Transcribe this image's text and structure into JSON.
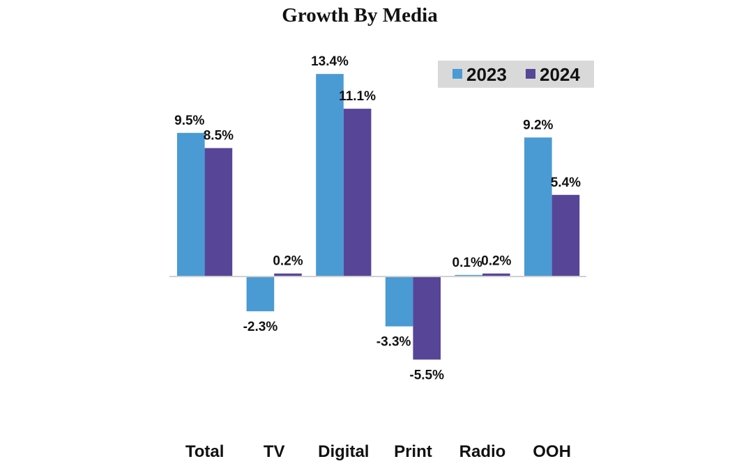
{
  "chart_data": {
    "type": "bar",
    "title": "Growth By Media",
    "categories": [
      "Total",
      "TV",
      "Digital",
      "Print",
      "Radio",
      "OOH"
    ],
    "series": [
      {
        "name": "2023",
        "color": "#4a9ad4",
        "values": [
          9.5,
          -2.3,
          13.4,
          -3.3,
          0.1,
          9.2
        ],
        "labels": [
          "9.5%",
          "-2.3%",
          "13.4%",
          "-3.3%",
          "0.1%",
          "9.2%"
        ]
      },
      {
        "name": "2024",
        "color": "#574598",
        "values": [
          8.5,
          0.2,
          11.1,
          -5.5,
          0.2,
          5.4
        ],
        "labels": [
          "8.5%",
          "0.2%",
          "11.1%",
          "-5.5%",
          "0.2%",
          "5.4%"
        ]
      }
    ],
    "xlabel": "",
    "ylabel": "",
    "ylim": [
      -6,
      15
    ],
    "grid": false,
    "legend": {
      "position": "top-right",
      "background": "#d9d9d9"
    }
  }
}
